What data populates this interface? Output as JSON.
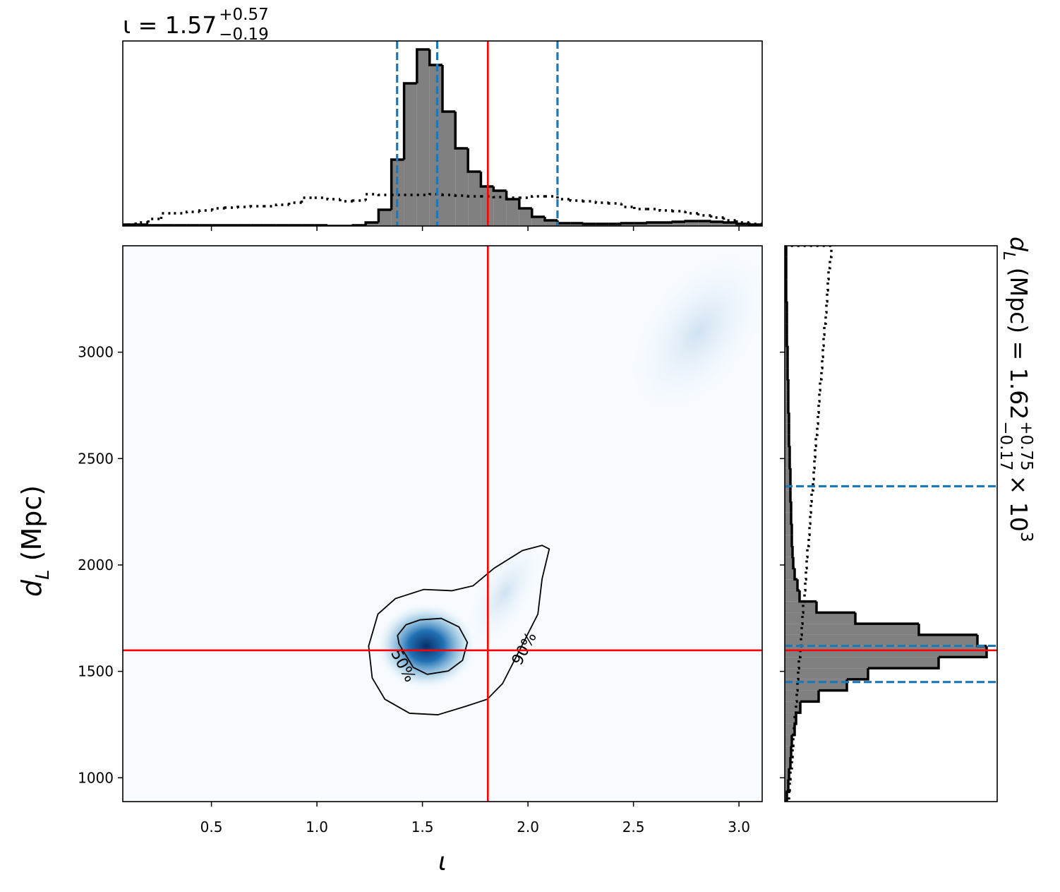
{
  "chart_data": [
    {
      "type": "histogram",
      "orientation": "vertical",
      "title": {
        "text": "ι = 1.57",
        "upper": "+0.57",
        "lower": "−0.19"
      },
      "bins": [
        0.08,
        0.141,
        0.201,
        0.262,
        0.322,
        0.383,
        0.444,
        0.504,
        0.565,
        0.625,
        0.686,
        0.747,
        0.807,
        0.868,
        0.928,
        0.989,
        1.05,
        1.11,
        1.171,
        1.231,
        1.292,
        1.353,
        1.413,
        1.474,
        1.534,
        1.595,
        1.656,
        1.716,
        1.777,
        1.837,
        1.898,
        1.959,
        2.019,
        2.08,
        2.14,
        2.201,
        2.262,
        2.322,
        2.383,
        2.443,
        2.504,
        2.565,
        2.625,
        2.686,
        2.746,
        2.807,
        2.868,
        2.928,
        2.989,
        3.049,
        3.11
      ],
      "values": [
        2,
        2,
        1,
        1,
        1,
        1,
        1,
        1,
        1,
        1,
        1,
        1,
        1,
        1,
        1,
        1,
        0,
        0,
        1,
        5,
        23,
        94,
        202,
        250,
        228,
        162,
        110,
        77,
        56,
        50,
        38,
        25,
        13,
        8,
        4,
        4,
        3,
        3,
        3,
        4,
        4,
        5,
        5,
        6,
        7,
        7,
        6,
        5,
        3,
        2
      ],
      "prior_values": [
        2,
        5,
        10,
        18,
        18,
        20,
        22,
        25,
        26,
        27,
        28,
        28,
        30,
        33,
        40,
        40,
        38,
        35,
        36,
        45,
        44,
        44,
        44,
        44,
        45,
        44,
        43,
        42,
        42,
        41,
        40,
        40,
        42,
        42,
        38,
        36,
        35,
        33,
        32,
        27,
        24,
        24,
        22,
        21,
        18,
        15,
        12,
        8,
        5,
        3
      ],
      "color": "#808080",
      "quantiles": [
        1.38,
        1.57,
        2.14
      ],
      "quantile_color": "#1f77b4",
      "truth": 1.81,
      "truth_color": "#ff0000",
      "xlim": [
        0.08,
        3.11
      ],
      "ylim": [
        0,
        262
      ],
      "xticks": [
        0.5,
        1,
        1.5,
        2,
        2.5,
        3
      ]
    },
    {
      "type": "density2d",
      "xlabel": "ι",
      "ylabel": {
        "symbol": "d",
        "subscript": "L",
        "text": "(Mpc)"
      },
      "xlim": [
        0.08,
        3.11
      ],
      "ylim": [
        888,
        3500
      ],
      "xticks": [
        0.5,
        {
          "value": 1,
          "label": "1.0"
        },
        1.5,
        {
          "value": 2,
          "label": "2.0"
        },
        2.5,
        {
          "value": 3,
          "label": "3.0"
        }
      ],
      "yticks": [
        1000,
        1500,
        2000,
        2500,
        3000
      ],
      "truth": {
        "x": 1.81,
        "y": 1599
      },
      "truth_color": "#ff0000",
      "cmap": "#08519c",
      "contours": [
        {
          "label": "50%",
          "x": [
            1.422,
            1.489,
            1.589,
            1.673,
            1.713,
            1.69,
            1.623,
            1.523,
            1.456,
            1.389,
            1.382
          ],
          "y": [
            1719,
            1742,
            1749,
            1709,
            1636,
            1552,
            1502,
            1486,
            1519,
            1629,
            1669
          ]
        },
        {
          "label": "90%",
          "x": [
            1.245,
            1.262,
            1.322,
            1.439,
            1.573,
            1.706,
            1.807,
            1.88,
            2.047,
            2.067,
            2.101,
            2.067,
            1.974,
            1.84,
            1.74,
            1.64,
            1.506,
            1.372,
            1.289
          ],
          "y": [
            1619,
            1469,
            1369,
            1303,
            1296,
            1336,
            1369,
            1443,
            1769,
            1935,
            2075,
            2092,
            2068,
            1985,
            1902,
            1879,
            1885,
            1842,
            1769
          ]
        }
      ]
    },
    {
      "type": "histogram",
      "orientation": "horizontal",
      "title": {
        "symbol": "d",
        "subscript": "L",
        "text": "(Mpc) = 1.62",
        "upper": "+0.75",
        "lower": "−0.17",
        "scale": "× 10",
        "exponent": "3"
      },
      "bins": [
        888,
        940.2,
        992.5,
        1044.7,
        1097,
        1149.2,
        1201.4,
        1253.7,
        1305.9,
        1358.2,
        1410.4,
        1462.6,
        1514.9,
        1567.1,
        1619.4,
        1671.6,
        1723.8,
        1776.1,
        1828.3,
        1880.6,
        1932.8,
        1985,
        2037.3,
        2089.5,
        2141.8,
        2194,
        2246.2,
        2298.5,
        2350.7,
        2403,
        2455.2,
        2507.4,
        2559.7,
        2611.9,
        2664.2,
        2716.4,
        2768.6,
        2820.9,
        2873.1,
        2925.4,
        2977.6,
        3029.8,
        3082.1,
        3134.3,
        3186.6,
        3238.8,
        3291,
        3343.3,
        3395.5,
        3447.8,
        3500
      ],
      "values": [
        3,
        5,
        6,
        8,
        9,
        10,
        14,
        16,
        22,
        48,
        88,
        118,
        218,
        286,
        273,
        190,
        100,
        45,
        21,
        18,
        14,
        12,
        11,
        10,
        10,
        9,
        9,
        8,
        8,
        8,
        7,
        7,
        6,
        6,
        6,
        5,
        5,
        5,
        4,
        4,
        4,
        3,
        3,
        3,
        3,
        2,
        2,
        2,
        2,
        2
      ],
      "prior_values": [
        6,
        7,
        8,
        10,
        11,
        12,
        13,
        14,
        16,
        17,
        18,
        19,
        20,
        22,
        23,
        24,
        25,
        26,
        28,
        29,
        30,
        31,
        32,
        34,
        35,
        36,
        37,
        38,
        40,
        41,
        42,
        43,
        44,
        46,
        47,
        48,
        49,
        50,
        52,
        53,
        54,
        55,
        56,
        58,
        59,
        60,
        61,
        62,
        64,
        66
      ],
      "color": "#808080",
      "quantiles": [
        1450,
        1620,
        2370
      ],
      "quantile_color": "#1f77b4",
      "truth": 1599,
      "truth_color": "#ff0000",
      "xlim": [
        0,
        301
      ],
      "ylim": [
        888,
        3500
      ],
      "yticks": [
        1000,
        1500,
        2000,
        2500,
        3000
      ]
    }
  ]
}
